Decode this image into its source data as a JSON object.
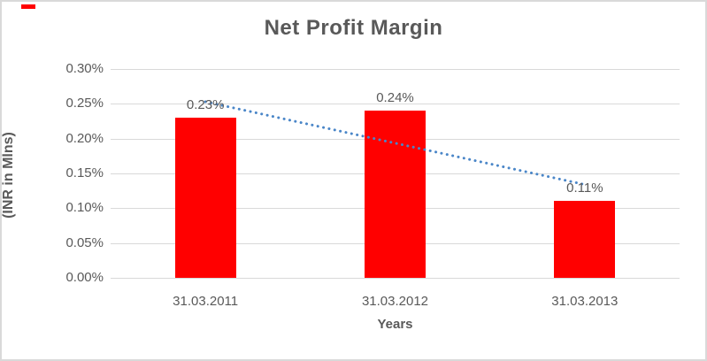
{
  "chart_data": {
    "type": "bar",
    "title": "Net Profit Margin",
    "categories": [
      "31.03.2011",
      "31.03.2012",
      "31.03.2013"
    ],
    "values": [
      0.23,
      0.24,
      0.11
    ],
    "data_labels": [
      "0.23%",
      "0.24%",
      "0.11%"
    ],
    "xlabel": "Years",
    "ylabel": "(INR in Mlns)",
    "ylim": [
      0,
      0.3
    ],
    "ytick_step": 0.05,
    "ytick_labels": [
      "0.00%",
      "0.05%",
      "0.10%",
      "0.15%",
      "0.20%",
      "0.25%",
      "0.30%"
    ],
    "grid": true,
    "legend": false,
    "trendline": {
      "type": "linear",
      "style": "dotted",
      "start_value": 0.253,
      "end_value": 0.134
    },
    "colors": {
      "bar": "#ff0000",
      "trendline": "#4a86c8",
      "text": "#595959",
      "gridline": "#d9d9d9",
      "frame_border": "#d9d9d9"
    }
  }
}
